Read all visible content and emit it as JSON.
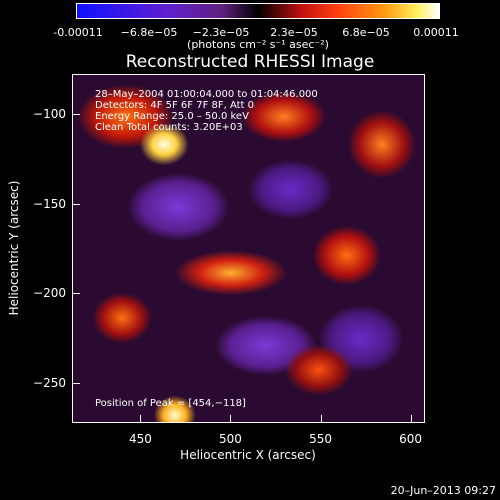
{
  "chart_data": {
    "type": "heatmap",
    "title": "Reconstructed RHESSI Image",
    "xlabel": "Heliocentric X (arcsec)",
    "ylabel": "Heliocentric Y (arcsec)",
    "xlim": [
      412,
      608
    ],
    "ylim": [
      -272,
      -78
    ],
    "xticks": [
      450,
      500,
      550,
      600
    ],
    "yticks": [
      -100,
      -150,
      -200,
      -250
    ],
    "colorbar": {
      "ticks": [
        "-0.00011",
        "−6.8e−05",
        "−2.3e−05",
        "2.3e−05",
        "6.8e−05",
        "0.00011"
      ],
      "units": "(photons cm⁻² s⁻¹ asec⁻²)"
    },
    "annotations": {
      "time": "28–May–2004 01:00:04.000 to 01:04:46.000",
      "detectors": "Detectors: 4F 5F 6F 7F 8F, Att 0",
      "energy": "Energy Range: 25.0 – 50.0 keV",
      "clean": "Clean     Total counts: 3.20E+03",
      "peak": "Position of Peak = [454,−118]"
    }
  },
  "footer": "20–Jun–2013 09:27"
}
